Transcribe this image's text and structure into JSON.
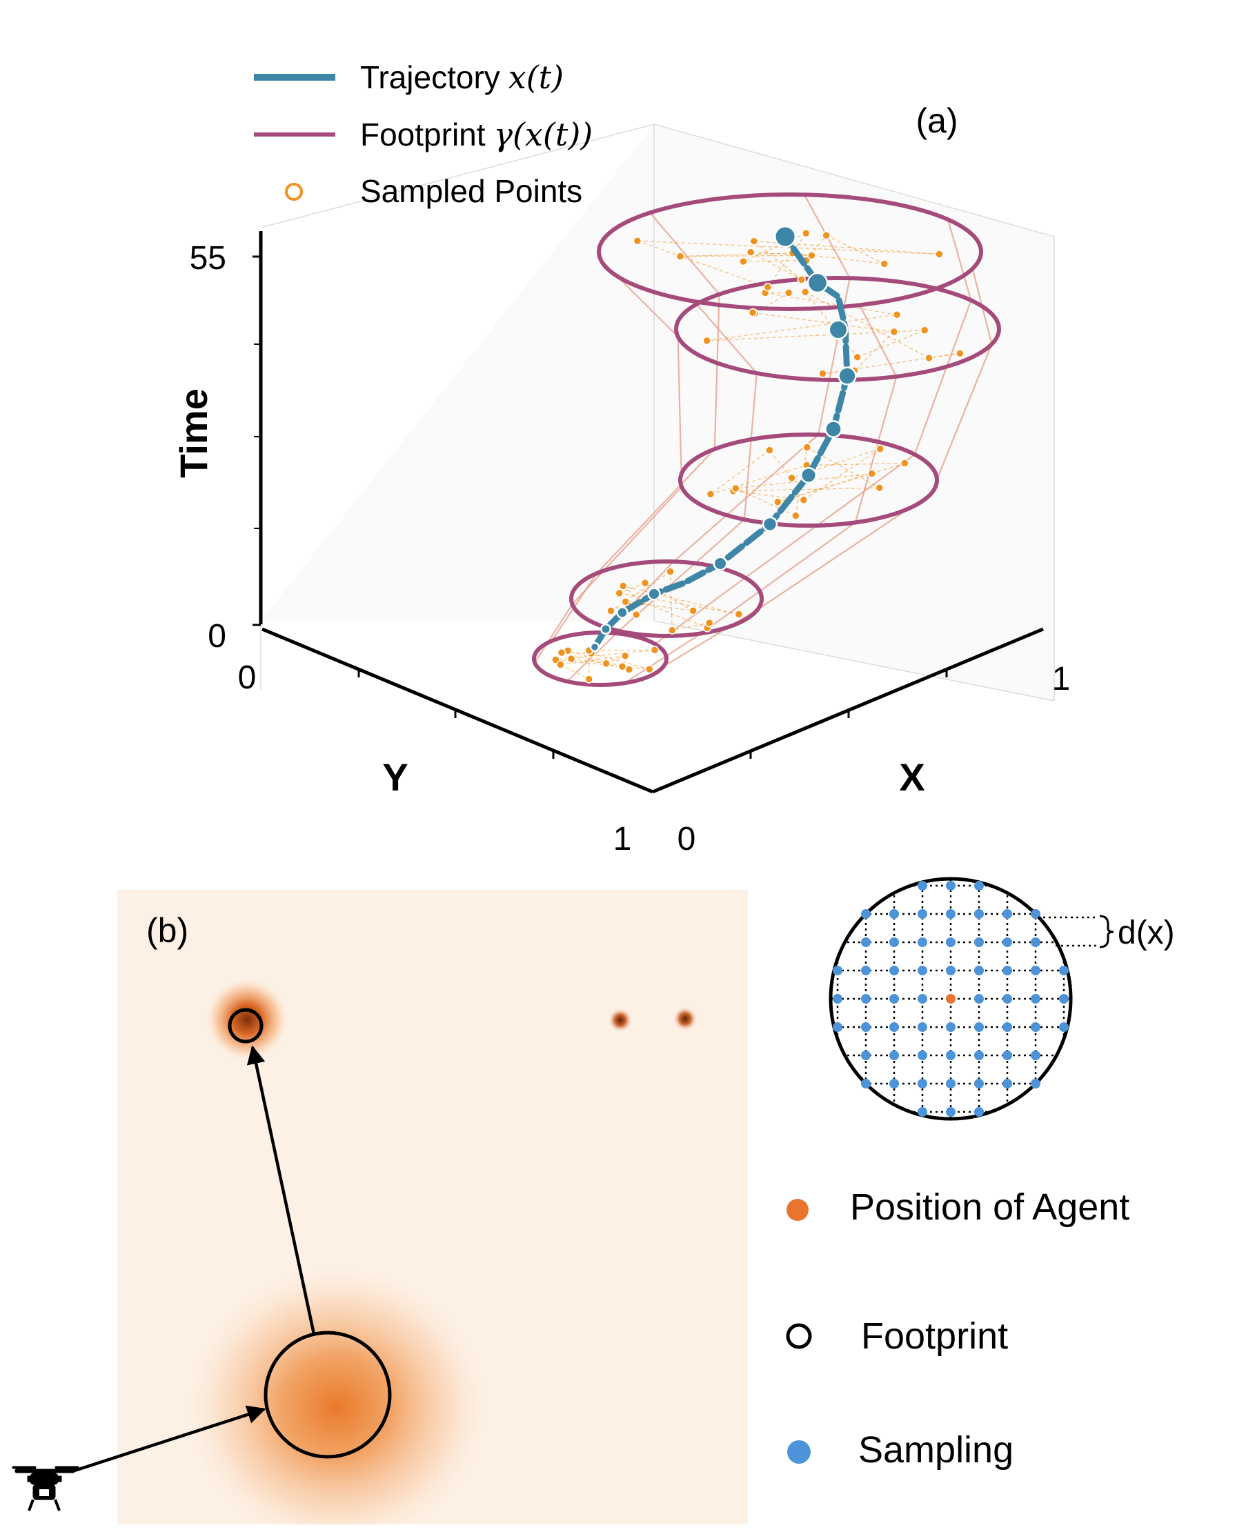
{
  "panel_a": {
    "label": "(a)",
    "legend": {
      "trajectory": {
        "text": "Trajectory",
        "math": "x(t)"
      },
      "footprint": {
        "text": "Footprint",
        "math": "γ(x(t))"
      },
      "sampled": {
        "text": "Sampled Points"
      }
    },
    "axes": {
      "time_label": "Time",
      "time_ticks": [
        "0",
        "55"
      ],
      "y_label": "Y",
      "y_ticks": [
        "0",
        "1"
      ],
      "x_label": "X",
      "x_ticks": [
        "0",
        "1"
      ]
    },
    "colors": {
      "trajectory": "#3e86a8",
      "footprint": "#a54b7b",
      "sampled": "#f0921f",
      "link": "#e59a84"
    }
  },
  "panel_b": {
    "label": "(b)",
    "inset": {
      "spacing_label": "d(x)"
    },
    "legend": [
      {
        "text": "Position of Agent",
        "marker": "filled-circle",
        "color": "#e8742e"
      },
      {
        "text": "Footprint",
        "marker": "hollow-circle",
        "color": "#000000"
      },
      {
        "text": "Sampling",
        "marker": "filled-circle",
        "color": "#4c93d9"
      }
    ],
    "icons": [
      "drone-icon"
    ],
    "colors": {
      "background": "#fdf1e6",
      "density": "#ea7b2c",
      "grid_point": "#4c93d9",
      "agent": "#e8742e"
    }
  }
}
